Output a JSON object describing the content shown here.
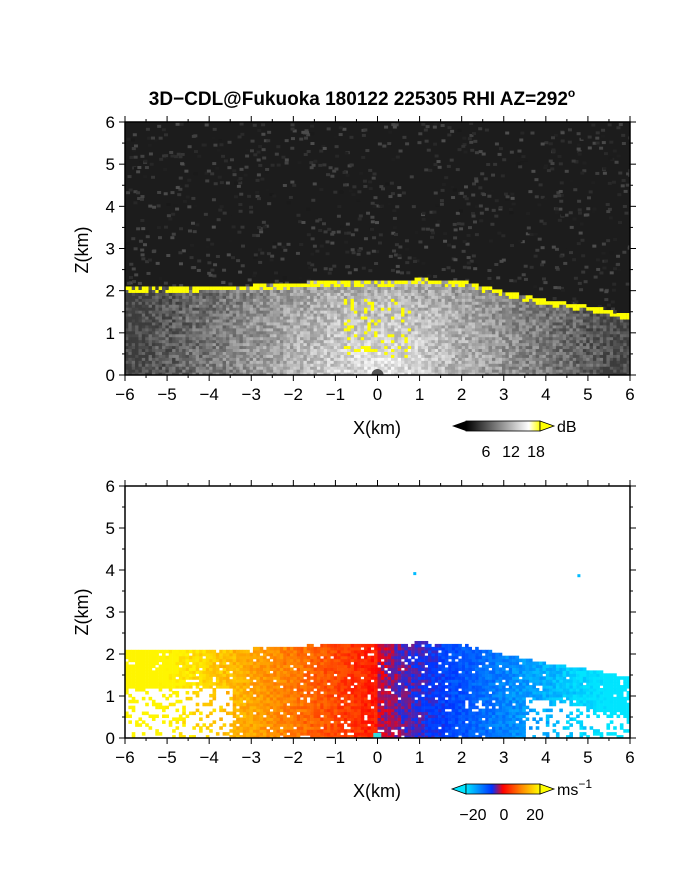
{
  "title": "3D−CDL@Fukuoka 180122 225305 RHI AZ=292",
  "title_degree": "o",
  "chart_data": [
    {
      "type": "heatmap",
      "panel": "snr",
      "xlabel": "X(km)",
      "ylabel": "Z(km)",
      "xlim": [
        -6,
        6
      ],
      "ylim": [
        0,
        6
      ],
      "x_ticks": [
        "−6",
        "−5",
        "−4",
        "−3",
        "−2",
        "−1",
        "0",
        "1",
        "2",
        "3",
        "4",
        "5",
        "6"
      ],
      "y_ticks": [
        "0",
        "1",
        "2",
        "3",
        "4",
        "5",
        "6"
      ],
      "colorbar": {
        "unit": "dB",
        "ticks": [
          "6",
          "12",
          "18"
        ],
        "range": [
          0,
          20
        ],
        "colors": [
          "#000000",
          "#ffffff",
          "#ffff00"
        ]
      },
      "layer_top_km": [
        [
          -6,
          2.05
        ],
        [
          -3,
          2.1
        ],
        [
          -1.2,
          2.2
        ],
        [
          0,
          2.2
        ],
        [
          1,
          2.25
        ],
        [
          2,
          2.2
        ],
        [
          3,
          1.95
        ],
        [
          4,
          1.75
        ],
        [
          5,
          1.6
        ],
        [
          6,
          1.4
        ]
      ]
    },
    {
      "type": "heatmap",
      "panel": "velocity",
      "xlabel": "X(km)",
      "ylabel": "Z(km)",
      "xlim": [
        -6,
        6
      ],
      "ylim": [
        0,
        6
      ],
      "x_ticks": [
        "−6",
        "−5",
        "−4",
        "−3",
        "−2",
        "−1",
        "0",
        "1",
        "2",
        "3",
        "4",
        "5",
        "6"
      ],
      "y_ticks": [
        "0",
        "1",
        "2",
        "3",
        "4",
        "5",
        "6"
      ],
      "colorbar": {
        "unit": "ms",
        "unit_sup": "−1",
        "ticks": [
          "−20",
          "0",
          "20"
        ],
        "range": [
          -25,
          25
        ],
        "colors": [
          "#00e5ff",
          "#0033ff",
          "#ff0000",
          "#ffff00"
        ]
      },
      "layer_top_km": [
        [
          -6,
          2.05
        ],
        [
          -3,
          2.1
        ],
        [
          -1.2,
          2.2
        ],
        [
          0,
          2.2
        ],
        [
          1,
          2.25
        ],
        [
          2,
          2.2
        ],
        [
          3,
          1.95
        ],
        [
          4,
          1.75
        ],
        [
          5,
          1.6
        ],
        [
          6,
          1.4
        ]
      ]
    }
  ]
}
